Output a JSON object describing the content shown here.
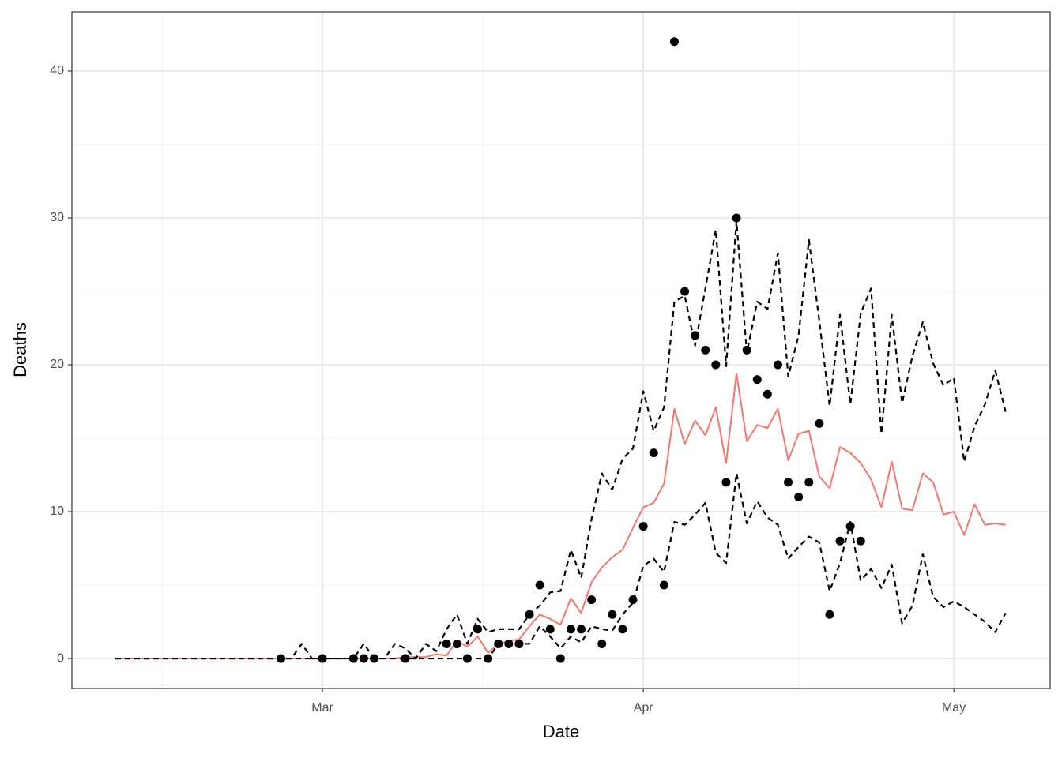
{
  "chart_data": {
    "type": "line",
    "x_label": "Date",
    "y_label": "Deaths",
    "xlim": [
      -24.2,
      70.3
    ],
    "ylim": [
      -2.04,
      44.03
    ],
    "xticks": [
      {
        "value": 0,
        "label": "Mar"
      },
      {
        "value": 31,
        "label": "Apr"
      },
      {
        "value": 61,
        "label": "May"
      }
    ],
    "yticks": [
      0,
      10,
      20,
      30,
      40
    ],
    "xminor": [
      -15.5,
      15.5,
      46
    ],
    "yminor": [
      5,
      15,
      25,
      35
    ],
    "grid": true,
    "x": [
      -20,
      -19,
      -18,
      -17,
      -16,
      -15,
      -14,
      -13,
      -12,
      -11,
      -10,
      -9,
      -8,
      -7,
      -6,
      -5,
      -4,
      -3,
      -2,
      -1,
      0,
      1,
      2,
      3,
      4,
      5,
      6,
      7,
      8,
      9,
      10,
      11,
      12,
      13,
      14,
      15,
      16,
      17,
      18,
      19,
      20,
      21,
      22,
      23,
      24,
      25,
      26,
      27,
      28,
      29,
      30,
      31,
      32,
      33,
      34,
      35,
      36,
      37,
      38,
      39,
      40,
      41,
      42,
      43,
      44,
      45,
      46,
      47,
      48,
      49,
      50,
      51,
      52,
      53,
      54,
      55,
      56,
      57,
      58,
      59,
      60,
      61,
      62,
      63,
      64,
      65,
      66
    ],
    "series": [
      {
        "color": "#f8766d",
        "dash": false,
        "values": [
          0,
          0,
          0,
          0,
          0,
          0,
          0,
          0,
          0,
          0,
          0,
          0,
          0,
          0,
          0,
          0,
          0,
          0,
          0,
          0,
          0,
          0,
          0,
          0,
          0,
          0,
          0,
          0,
          0.1,
          0.1,
          0.1,
          0.3,
          0.2,
          1.2,
          0.8,
          1.5,
          0.4,
          1.0,
          1.2,
          1.3,
          2.2,
          3.0,
          2.7,
          2.3,
          4.1,
          3.1,
          5.2,
          6.2,
          6.9,
          7.4,
          8.9,
          10.3,
          10.6,
          11.9,
          17.0,
          14.6,
          16.2,
          15.2,
          17.1,
          13.3,
          19.4,
          14.8,
          15.9,
          15.7,
          17.0,
          13.5,
          15.3,
          15.5,
          12.4,
          11.6,
          14.4,
          14.0,
          13.3,
          12.2,
          10.3,
          13.4,
          10.2,
          10.1,
          12.6,
          12.0,
          9.8,
          10.0,
          8.4,
          10.5,
          9.1,
          9.2,
          9.1
        ]
      },
      {
        "color": "#000000",
        "dash": true,
        "values": [
          0,
          0,
          0,
          0,
          0,
          0,
          0,
          0,
          0,
          0,
          0,
          0,
          0,
          0,
          0,
          0,
          0,
          0,
          1,
          0,
          0,
          0,
          0,
          0,
          1,
          0,
          0,
          1,
          0.7,
          0,
          1,
          0.5,
          2,
          3,
          1,
          2.7,
          1.8,
          2,
          2,
          2,
          3,
          3.6,
          4.5,
          4.6,
          7.4,
          5.5,
          9.5,
          12.6,
          11.5,
          13.6,
          14.3,
          18.2,
          15.5,
          17.1,
          24.3,
          24.7,
          21.3,
          25.2,
          29.2,
          19.9,
          29.8,
          20.8,
          24.3,
          23.8,
          27.6,
          19.2,
          22,
          28.5,
          23,
          17.2,
          23.4,
          17.3,
          23.5,
          25.2,
          15.3,
          23.4,
          17.4,
          20.6,
          22.9,
          20.1,
          18.6,
          19.1,
          13.4,
          15.8,
          17.3,
          19.6,
          16.8
        ]
      },
      {
        "color": "#000000",
        "dash": true,
        "values": [
          0,
          0,
          0,
          0,
          0,
          0,
          0,
          0,
          0,
          0,
          0,
          0,
          0,
          0,
          0,
          0,
          0,
          0,
          0,
          0,
          0,
          0,
          0,
          0,
          0,
          0,
          0,
          0,
          0,
          0,
          0,
          0,
          0,
          0,
          0,
          0,
          0,
          1,
          1,
          1,
          1,
          2.2,
          1.5,
          0.7,
          1.5,
          1.1,
          2.2,
          2.0,
          1.9,
          3.0,
          3.8,
          6.3,
          6.8,
          5.9,
          9.3,
          9.1,
          9.8,
          10.6,
          7.2,
          6.5,
          12.6,
          9.2,
          10.7,
          9.6,
          9.1,
          6.8,
          7.6,
          8.3,
          7.9,
          4.6,
          6.5,
          9.3,
          5.3,
          6.1,
          4.8,
          6.4,
          2.4,
          3.6,
          7.1,
          4.2,
          3.5,
          3.9,
          3.5,
          3.0,
          2.5,
          1.8,
          3.1
        ]
      }
    ],
    "points": {
      "color": "#000000",
      "x": [
        -4,
        0,
        3,
        4,
        5,
        8,
        12,
        13,
        14,
        15,
        16,
        17,
        18,
        19,
        20,
        21,
        22,
        23,
        24,
        25,
        26,
        27,
        28,
        29,
        30,
        31,
        32,
        33,
        34,
        35,
        36,
        37,
        38,
        39,
        40,
        41,
        42,
        43,
        44,
        45,
        46,
        47,
        48,
        49,
        50,
        51,
        52
      ],
      "values": [
        0,
        0,
        0,
        0,
        0,
        0,
        1,
        1,
        0,
        2,
        0,
        1,
        1,
        1,
        3,
        5,
        2,
        0,
        2,
        2,
        4,
        1,
        3,
        2,
        4,
        9,
        14,
        5,
        42,
        25,
        22,
        21,
        20,
        12,
        30,
        21,
        19,
        18,
        20,
        12,
        11,
        12,
        16,
        3,
        8,
        9,
        8
      ]
    }
  }
}
